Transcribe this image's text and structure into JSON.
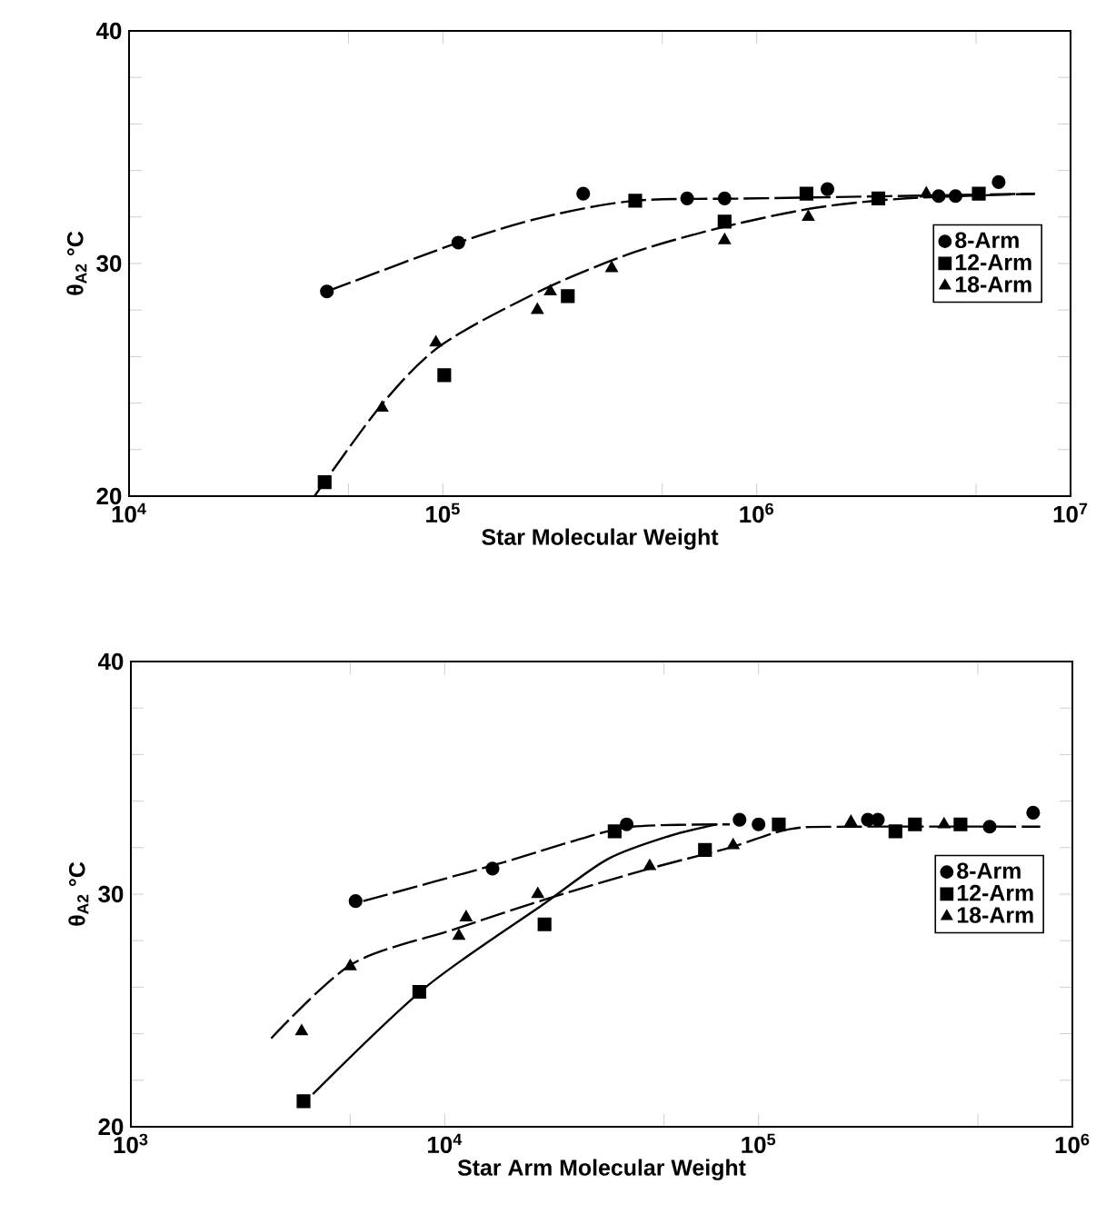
{
  "chart_data": [
    {
      "type": "scatter",
      "xlabel": "Star Molecular Weight",
      "ylabel": "θ$_{A2}$ °C",
      "log": "x",
      "legend": "right",
      "xlim": [
        10000,
        10000000
      ],
      "ylim": [
        20,
        40
      ],
      "xticks": [
        {
          "value": 10000,
          "label": "10$^{4}$"
        },
        {
          "value": 50000,
          "label": null
        },
        {
          "value": 100000,
          "label": "10$^{5}$"
        },
        {
          "value": 500000,
          "label": null
        },
        {
          "value": 1000000,
          "label": "10$^{6}$"
        },
        {
          "value": 5000000,
          "label": null
        },
        {
          "value": 10000000,
          "label": "10$^{7}$"
        }
      ],
      "yticks": [
        20,
        {
          "value": 22,
          "label": null
        },
        {
          "value": 24,
          "label": null
        },
        {
          "value": 26,
          "label": null
        },
        {
          "value": 28,
          "label": null
        },
        30,
        {
          "value": 32,
          "label": null
        },
        {
          "value": 34,
          "label": null
        },
        {
          "value": 36,
          "label": null
        },
        {
          "value": 38,
          "label": null
        },
        40
      ],
      "series": [
        {
          "name": "8-Arm",
          "color": "#000000",
          "marker": "circle",
          "x": [
            42700,
            112000,
            280000,
            600000,
            790000,
            1680000,
            3800000,
            4300000,
            5900000
          ],
          "values": [
            28.8,
            30.9,
            33.0,
            32.8,
            32.8,
            33.2,
            32.9,
            32.9,
            33.5
          ]
        },
        {
          "name": "12-Arm",
          "color": "#000000",
          "marker": "square",
          "x": [
            42000,
            101000,
            250000,
            410000,
            790000,
            1440000,
            2440000,
            5100000
          ],
          "values": [
            20.6,
            25.2,
            28.6,
            32.7,
            31.8,
            33.0,
            32.8,
            33.0
          ]
        },
        {
          "name": "18-Arm",
          "color": "#000000",
          "marker": "triangle",
          "x": [
            64000,
            95000,
            200000,
            220000,
            345000,
            790000,
            1460000,
            3470000
          ],
          "values": [
            23.8,
            26.6,
            28.0,
            28.8,
            29.8,
            31.0,
            32.0,
            33.0
          ]
        },
        {
          "type": "line",
          "color": "#000000",
          "marker": "none",
          "line_style": "dashed",
          "x": [
            42700,
            112000,
            210000,
            410000,
            1000000,
            7700000
          ],
          "values": [
            28.8,
            30.9,
            32.0,
            32.7,
            32.8,
            33.0
          ]
        },
        {
          "type": "line",
          "color": "#000000",
          "marker": "none",
          "line_style": "dashed",
          "x": [
            39000,
            63500,
            99000,
            210000,
            410000,
            800000,
            1550000,
            3000000,
            7700000
          ],
          "values": [
            20.0,
            23.9,
            26.5,
            28.9,
            30.5,
            31.6,
            32.4,
            32.8,
            33.0
          ]
        }
      ]
    },
    {
      "type": "scatter",
      "xlabel": "Star Arm Molecular Weight",
      "ylabel": "θ$_{A2}$ °C",
      "log": "x",
      "legend": "right",
      "xlim": [
        1000,
        1000000
      ],
      "ylim": [
        20,
        40
      ],
      "xticks": [
        {
          "value": 1000,
          "label": "10$^{3}$"
        },
        {
          "value": 5000,
          "label": null
        },
        {
          "value": 10000,
          "label": "10$^{4}$"
        },
        {
          "value": 50000,
          "label": null
        },
        {
          "value": 100000,
          "label": "10$^{5}$"
        },
        {
          "value": 500000,
          "label": null
        },
        {
          "value": 1000000,
          "label": "10$^{6}$"
        }
      ],
      "yticks": [
        20,
        {
          "value": 22,
          "label": null
        },
        {
          "value": 24,
          "label": null
        },
        {
          "value": 26,
          "label": null
        },
        {
          "value": 28,
          "label": null
        },
        30,
        {
          "value": 32,
          "label": null
        },
        {
          "value": 34,
          "label": null
        },
        {
          "value": 36,
          "label": null
        },
        {
          "value": 38,
          "label": null
        },
        40
      ],
      "series": [
        {
          "name": "8-Arm",
          "color": "#000000",
          "marker": "circle",
          "x": [
            5200,
            14200,
            38000,
            87000,
            100000,
            223000,
            240000,
            545000,
            750000
          ],
          "values": [
            29.7,
            31.1,
            33.0,
            33.2,
            33.0,
            33.2,
            33.2,
            32.9,
            33.5
          ]
        },
        {
          "name": "12-Arm",
          "color": "#000000",
          "marker": "square",
          "x": [
            3550,
            8300,
            20800,
            34800,
            67500,
            116000,
            273000,
            315000,
            440000
          ],
          "values": [
            21.1,
            25.8,
            28.7,
            32.7,
            31.9,
            33.0,
            32.7,
            33.0,
            33.0
          ]
        },
        {
          "name": "18-Arm",
          "color": "#000000",
          "marker": "triangle",
          "x": [
            3500,
            5000,
            11100,
            11700,
            19800,
            45000,
            83000,
            197000,
            390000
          ],
          "values": [
            24.1,
            26.9,
            28.2,
            29.0,
            30.0,
            31.2,
            32.1,
            33.1,
            33.0
          ]
        },
        {
          "type": "line",
          "color": "#000000",
          "marker": "none",
          "line_style": "dashed",
          "x": [
            5500,
            14800,
            26000,
            39500,
            81000
          ],
          "values": [
            29.7,
            31.3,
            32.3,
            32.9,
            33.0
          ]
        },
        {
          "type": "line",
          "color": "#000000",
          "marker": "none",
          "line_style": "solid",
          "x": [
            3800,
            8700,
            20800,
            33000,
            52000,
            74000
          ],
          "values": [
            21.4,
            26.0,
            29.6,
            31.5,
            32.5,
            33.0
          ]
        },
        {
          "type": "line",
          "color": "#000000",
          "marker": "none",
          "line_style": "dashed",
          "x": [
            2800,
            5070,
            10800,
            21200,
            45000,
            81000,
            126000,
            197000,
            790000
          ],
          "values": [
            23.8,
            27.0,
            28.5,
            29.8,
            31.1,
            32.0,
            32.8,
            32.9,
            32.9
          ]
        }
      ]
    }
  ]
}
